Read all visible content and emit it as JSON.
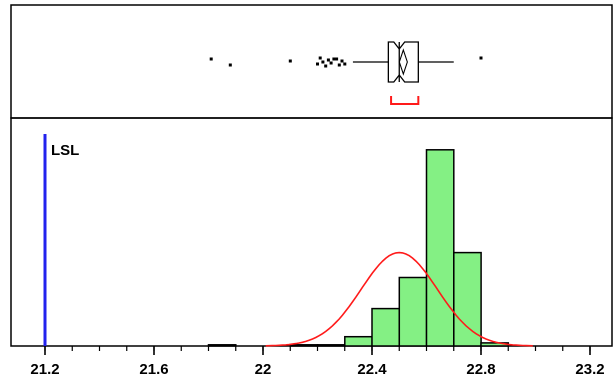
{
  "chart_data": {
    "type": "bar",
    "subtype": "histogram-with-boxplot",
    "xlim": [
      21.2,
      23.2
    ],
    "x_ticks": [
      {
        "value": 21.2,
        "label": "21.2"
      },
      {
        "value": 21.6,
        "label": "21.6"
      },
      {
        "value": 22.0,
        "label": "22"
      },
      {
        "value": 22.4,
        "label": "22.4"
      },
      {
        "value": 22.8,
        "label": "22.8"
      },
      {
        "value": 23.2,
        "label": "23.2"
      }
    ],
    "minor_tick_step": 0.1,
    "histogram": {
      "bin_width": 0.1,
      "bins": [
        {
          "start": 21.8,
          "count": 0.4
        },
        {
          "start": 22.1,
          "count": 0.4
        },
        {
          "start": 22.2,
          "count": 0.4
        },
        {
          "start": 22.3,
          "count": 3
        },
        {
          "start": 22.4,
          "count": 12
        },
        {
          "start": 22.5,
          "count": 22
        },
        {
          "start": 22.6,
          "count": 63
        },
        {
          "start": 22.7,
          "count": 30
        },
        {
          "start": 22.8,
          "count": 1
        }
      ],
      "ylim": [
        0,
        70
      ],
      "color": "#84f084"
    },
    "normal_curve": {
      "mean": 22.5,
      "sd": 0.14,
      "peak": 30,
      "color": "#ff1a1a"
    },
    "spec_limits": [
      {
        "label": "LSL",
        "value": 21.2,
        "color": "#2222ee"
      }
    ],
    "boxplot": {
      "min": 22.33,
      "q1": 22.46,
      "median": 22.5,
      "mean": 22.515,
      "q3": 22.57,
      "max": 22.7,
      "notch_low": 22.48,
      "notch_high": 22.52,
      "shortest_half": [
        22.47,
        22.57
      ],
      "outliers": [
        21.81,
        21.88,
        22.1,
        22.2,
        22.21,
        22.22,
        22.23,
        22.24,
        22.25,
        22.26,
        22.27,
        22.28,
        22.29,
        22.3,
        22.8
      ],
      "bracket_color": "#ff1a1a"
    }
  }
}
